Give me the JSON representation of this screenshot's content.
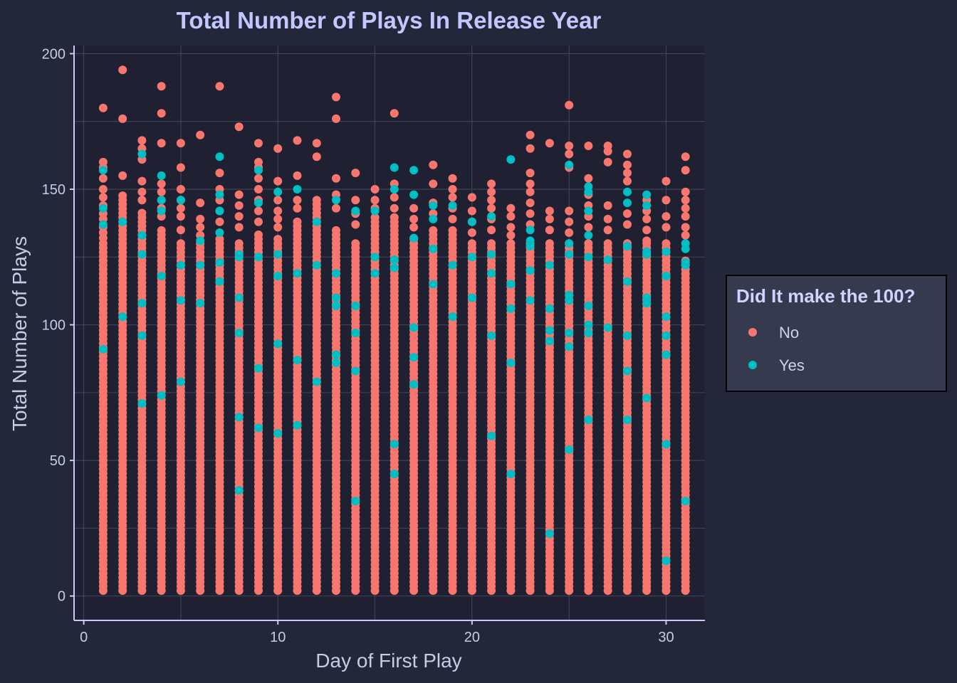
{
  "chart_data": {
    "type": "scatter",
    "title": "Total Number of Plays In Release Year",
    "xlabel": "Day of First Play",
    "ylabel": "Total Number of Plays",
    "xlim": [
      -0.5,
      32.0
    ],
    "ylim": [
      -9,
      203
    ],
    "x_ticks": [
      0,
      10,
      20,
      30
    ],
    "y_ticks": [
      0,
      50,
      100,
      150,
      200
    ],
    "grid": true,
    "legend": {
      "title": "Did It make the 100?",
      "position": "right",
      "entries": [
        {
          "label": "No",
          "color": "#F8766D"
        },
        {
          "label": "Yes",
          "color": "#00BFC4"
        }
      ]
    },
    "series": [
      {
        "name": "No",
        "color": "#F8766D",
        "columns": [
          {
            "x": 1,
            "dense_max": 130,
            "outliers": [
              180,
              160,
              158,
              154,
              150,
              147,
              144,
              141,
              139,
              136,
              134,
              132
            ]
          },
          {
            "x": 2,
            "dense_max": 148,
            "outliers": [
              194,
              176,
              155
            ]
          },
          {
            "x": 3,
            "dense_max": 142,
            "outliers": [
              168,
              165,
              161,
              153,
              149,
              146
            ]
          },
          {
            "x": 4,
            "dense_max": 135,
            "outliers": [
              188,
              178,
              167,
              152,
              149,
              146,
              143,
              140
            ]
          },
          {
            "x": 5,
            "dense_max": 130,
            "outliers": [
              167,
              158,
              150,
              146,
              143,
              140,
              135
            ]
          },
          {
            "x": 6,
            "dense_max": 130,
            "outliers": [
              170,
              145,
              139,
              136,
              133
            ]
          },
          {
            "x": 7,
            "dense_max": 132,
            "outliers": [
              188,
              156,
              150,
              146,
              142,
              138
            ]
          },
          {
            "x": 8,
            "dense_max": 130,
            "outliers": [
              173,
              148,
              144,
              140,
              136
            ]
          },
          {
            "x": 9,
            "dense_max": 134,
            "outliers": [
              167,
              160,
              158,
              154,
              150,
              146,
              142,
              138
            ]
          },
          {
            "x": 10,
            "dense_max": 132,
            "outliers": [
              165,
              153,
              146,
              142,
              139,
              136
            ]
          },
          {
            "x": 11,
            "dense_max": 138,
            "outliers": [
              168,
              155,
              146,
              143
            ]
          },
          {
            "x": 12,
            "dense_max": 146,
            "outliers": [
              167,
              162
            ]
          },
          {
            "x": 13,
            "dense_max": 135,
            "outliers": [
              184,
              176,
              154,
              148,
              143
            ]
          },
          {
            "x": 14,
            "dense_max": 130,
            "outliers": [
              156,
              146,
              141,
              137
            ]
          },
          {
            "x": 15,
            "dense_max": 140,
            "outliers": [
              150,
              146,
              143
            ]
          },
          {
            "x": 16,
            "dense_max": 140,
            "outliers": [
              178,
              152,
              147,
              143
            ]
          },
          {
            "x": 17,
            "dense_max": 132,
            "outliers": [
              143,
              139,
              136
            ]
          },
          {
            "x": 18,
            "dense_max": 136,
            "outliers": [
              159,
              152,
              145,
              141
            ]
          },
          {
            "x": 19,
            "dense_max": 135,
            "outliers": [
              154,
              150,
              147,
              143,
              139
            ]
          },
          {
            "x": 20,
            "dense_max": 130,
            "outliers": [
              147,
              142,
              138,
              134
            ]
          },
          {
            "x": 21,
            "dense_max": 130,
            "outliers": [
              152,
              149,
              146,
              143,
              139,
              135
            ]
          },
          {
            "x": 22,
            "dense_max": 130,
            "outliers": [
              143,
              140,
              136,
              133
            ]
          },
          {
            "x": 23,
            "dense_max": 130,
            "outliers": [
              170,
              165,
              156,
              152,
              149,
              145,
              141,
              137
            ]
          },
          {
            "x": 24,
            "dense_max": 130,
            "outliers": [
              167,
              142,
              139,
              135
            ]
          },
          {
            "x": 25,
            "dense_max": 130,
            "outliers": [
              181,
              166,
              163,
              158,
              142,
              138,
              134
            ]
          },
          {
            "x": 26,
            "dense_max": 130,
            "outliers": [
              166,
              154,
              148,
              144,
              140,
              136
            ]
          },
          {
            "x": 27,
            "dense_max": 130,
            "outliers": [
              166,
              164,
              160,
              144,
              139,
              135
            ]
          },
          {
            "x": 28,
            "dense_max": 130,
            "outliers": [
              163,
              159,
              156,
              153,
              141,
              137
            ]
          },
          {
            "x": 29,
            "dense_max": 130,
            "outliers": [
              146,
              142,
              139,
              135,
              131
            ]
          },
          {
            "x": 30,
            "dense_max": 130,
            "outliers": [
              153,
              146,
              140,
              136
            ]
          },
          {
            "x": 31,
            "dense_max": 124,
            "outliers": [
              162,
              157,
              149,
              146,
              143,
              140,
              136,
              133
            ]
          }
        ]
      },
      {
        "name": "Yes",
        "color": "#00BFC4",
        "columns": [
          {
            "x": 1,
            "points": [
              157,
              143,
              137,
              91
            ]
          },
          {
            "x": 2,
            "points": [
              138,
              103
            ]
          },
          {
            "x": 3,
            "points": [
              163,
              133,
              126,
              108,
              96,
              71
            ]
          },
          {
            "x": 4,
            "points": [
              155,
              146,
              142,
              118,
              74
            ]
          },
          {
            "x": 5,
            "points": [
              146,
              122,
              109,
              79
            ]
          },
          {
            "x": 6,
            "points": [
              131,
              122,
              108
            ]
          },
          {
            "x": 7,
            "points": [
              162,
              148,
              142,
              134,
              123,
              116
            ]
          },
          {
            "x": 8,
            "points": [
              126,
              125,
              110,
              97,
              66,
              39
            ]
          },
          {
            "x": 9,
            "points": [
              157,
              145,
              125,
              84,
              62
            ]
          },
          {
            "x": 10,
            "points": [
              149,
              126,
              118,
              93,
              60
            ]
          },
          {
            "x": 11,
            "points": [
              150,
              119,
              87,
              63
            ]
          },
          {
            "x": 12,
            "points": [
              138,
              122,
              79
            ]
          },
          {
            "x": 13,
            "points": [
              146,
              119,
              110,
              107,
              89,
              86
            ]
          },
          {
            "x": 14,
            "points": [
              142,
              107,
              97,
              83,
              35
            ]
          },
          {
            "x": 15,
            "points": [
              142,
              125,
              119
            ]
          },
          {
            "x": 16,
            "points": [
              158,
              150,
              124,
              121,
              56,
              45
            ]
          },
          {
            "x": 17,
            "points": [
              157,
              148,
              132,
              99,
              88,
              78
            ]
          },
          {
            "x": 18,
            "points": [
              144,
              139,
              128,
              115
            ]
          },
          {
            "x": 19,
            "points": [
              144,
              122,
              103
            ]
          },
          {
            "x": 20,
            "points": [
              138,
              125,
              110
            ]
          },
          {
            "x": 21,
            "points": [
              140,
              126,
              119,
              96,
              59
            ]
          },
          {
            "x": 22,
            "points": [
              161,
              115,
              106,
              86,
              45
            ]
          },
          {
            "x": 23,
            "points": [
              135,
              131,
              129,
              120,
              109
            ]
          },
          {
            "x": 24,
            "points": [
              122,
              106,
              98,
              94,
              23
            ]
          },
          {
            "x": 25,
            "points": [
              159,
              130,
              126,
              111,
              109,
              97,
              92,
              54
            ]
          },
          {
            "x": 26,
            "points": [
              151,
              149,
              142,
              133,
              125,
              107,
              100,
              97,
              65
            ]
          },
          {
            "x": 27,
            "points": [
              124,
              99
            ]
          },
          {
            "x": 28,
            "points": [
              149,
              145,
              129,
              116,
              96,
              83,
              65
            ]
          },
          {
            "x": 29,
            "points": [
              148,
              144,
              127,
              126,
              110,
              108,
              73
            ]
          },
          {
            "x": 30,
            "points": [
              127,
              118,
              103,
              96,
              89,
              56,
              13
            ]
          },
          {
            "x": 31,
            "points": [
              130,
              128,
              123,
              122,
              35
            ]
          }
        ]
      }
    ]
  }
}
